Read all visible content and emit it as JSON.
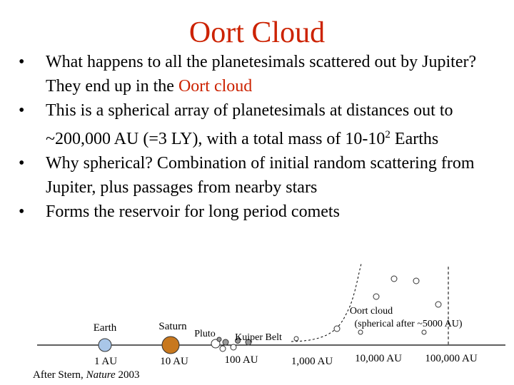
{
  "slide": {
    "title": "Oort Cloud",
    "bullet_marker": "•",
    "bullets": [
      {
        "text": "What happens to all the planetesimals scattered out by Jupiter? They end up in the ",
        "highlight": "Oort cloud"
      },
      {
        "text": "This is a spherical array of planetesimals at distances out to ~200,000 AU (=3 LY), with a total mass of 10-10",
        "sup": "2",
        "tail": " Earths"
      },
      {
        "text": "Why spherical? Combination of initial random scattering from Jupiter, plus passages from nearby stars"
      },
      {
        "text": "Forms the reservoir for long period comets"
      }
    ]
  },
  "diagram": {
    "axis_ticks": [
      "1 AU",
      "10 AU",
      "100 AU",
      "1,000 AU",
      "10,000 AU",
      "100,000 AU"
    ],
    "labels": {
      "earth": "Earth",
      "saturn": "Saturn",
      "pluto": "Pluto",
      "kuiper": "Kuiper Belt",
      "oort": "Oort cloud",
      "oort_sub": "(spherical after ~5000 AU)"
    },
    "credit_prefix": "After Stern, ",
    "credit_journal": "Nature",
    "credit_year": " 2003"
  },
  "colors": {
    "title": "#cc2200",
    "highlight": "#cc2200",
    "earth": "#a9c6e8",
    "saturn": "#c8781e",
    "kuiper_body": "#9a9a9a"
  }
}
